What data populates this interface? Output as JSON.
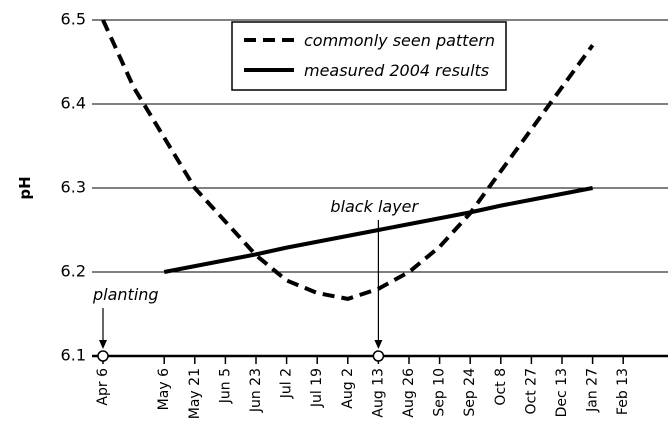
{
  "chart_data": {
    "type": "line",
    "ylabel": "pH",
    "categories": [
      "Apr 6",
      null,
      "May 6",
      "May 21",
      "Jun 5",
      "Jun 23",
      "Jul 2",
      "Jul 19",
      "Aug 2",
      "Aug 13",
      "Aug 26",
      "Sep 10",
      "Sep 24",
      "Oct 8",
      "Oct 27",
      "Dec 13",
      "Jan 27",
      "Feb 13"
    ],
    "series": [
      {
        "name": "commonly seen pattern",
        "color": "#000000",
        "dash": true,
        "values": [
          6.5,
          6.42,
          6.36,
          6.3,
          6.26,
          6.22,
          6.19,
          6.175,
          6.168,
          6.18,
          6.2,
          6.23,
          6.27,
          6.32,
          6.37,
          6.42,
          6.47,
          null
        ]
      },
      {
        "name": "measured 2004 results",
        "color": "#000000",
        "dash": false,
        "values": [
          null,
          null,
          6.2,
          6.207,
          6.214,
          6.221,
          6.229,
          6.236,
          6.243,
          6.25,
          6.257,
          6.264,
          6.271,
          6.279,
          6.286,
          6.293,
          6.3,
          null
        ]
      }
    ],
    "annotations": [
      "planting",
      "black layer"
    ],
    "ylim": [
      6.1,
      6.5
    ],
    "yticks": [
      {
        "value": 6.1,
        "label": "6.1"
      },
      {
        "value": 6.2,
        "label": "6.2"
      },
      {
        "value": 6.3,
        "label": "6.3"
      },
      {
        "value": 6.4,
        "label": "6.4"
      },
      {
        "value": 6.5,
        "label": "6.5"
      }
    ],
    "grid": true
  }
}
